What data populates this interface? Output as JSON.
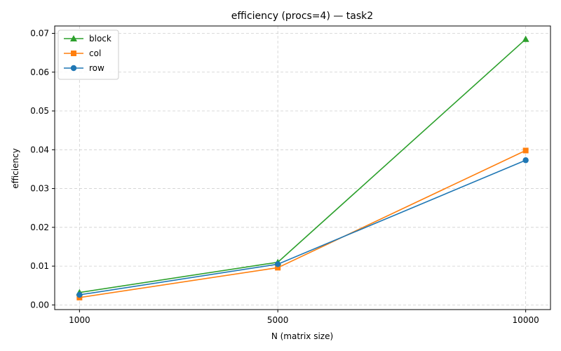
{
  "chart_data": {
    "type": "line",
    "title": "efficiency (procs=4) — task2",
    "xlabel": "N (matrix size)",
    "ylabel": "efficiency",
    "x": [
      1000,
      5000,
      10000
    ],
    "x_tick_labels": [
      "1000",
      "5000",
      "10000"
    ],
    "xlim": [
      500,
      10500
    ],
    "ylim": [
      -0.0012,
      0.0719
    ],
    "y_ticks": [
      0.0,
      0.01,
      0.02,
      0.03,
      0.04,
      0.05,
      0.06,
      0.07
    ],
    "y_tick_labels": [
      "0.00",
      "0.01",
      "0.02",
      "0.03",
      "0.04",
      "0.05",
      "0.06",
      "0.07"
    ],
    "grid": true,
    "legend_position": "upper-left",
    "series": [
      {
        "name": "block",
        "color": "#2ca02c",
        "marker": "triangle",
        "values": [
          0.0032,
          0.011,
          0.0685
        ]
      },
      {
        "name": "col",
        "color": "#ff7f0e",
        "marker": "square",
        "values": [
          0.0019,
          0.0096,
          0.0398
        ]
      },
      {
        "name": "row",
        "color": "#1f77b4",
        "marker": "circle",
        "values": [
          0.0026,
          0.0105,
          0.0373
        ]
      }
    ]
  }
}
